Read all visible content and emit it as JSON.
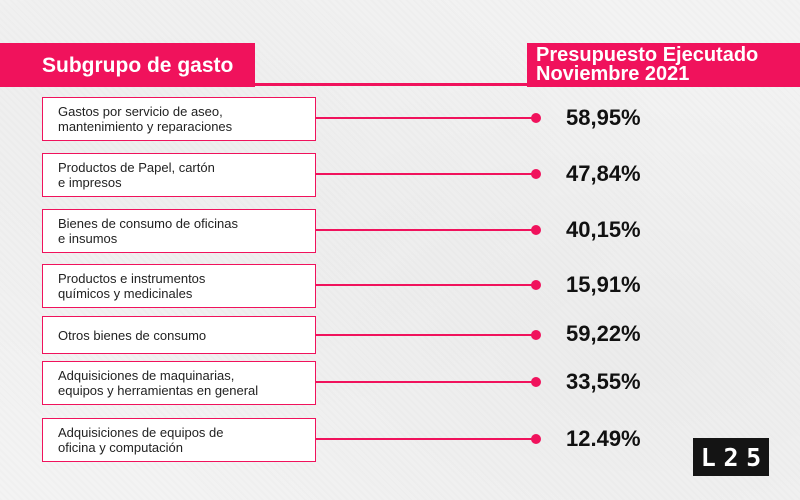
{
  "header": {
    "left_title": "Subgrupo de gasto",
    "right_title_line1": "Presupuesto Ejecutado",
    "right_title_line2": "Noviembre 2021"
  },
  "rows": [
    {
      "label_line1": "Gastos por servicio de aseo,",
      "label_line2": "mantenimiento y reparaciones",
      "value": "58,95%"
    },
    {
      "label_line1": "Productos de Papel, cartón",
      "label_line2": "e impresos",
      "value": "47,84%"
    },
    {
      "label_line1": "Bienes de consumo de oficinas",
      "label_line2": "e insumos",
      "value": "40,15%"
    },
    {
      "label_line1": "Productos e instrumentos",
      "label_line2": "químicos y medicinales",
      "value": "15,91%"
    },
    {
      "label_line1": "Otros bienes de consumo",
      "label_line2": "",
      "value": "59,22%"
    },
    {
      "label_line1": "Adquisiciones de maquinarias,",
      "label_line2": "equipos y herramientas en general",
      "value": "33,55%"
    },
    {
      "label_line1": "Adquisiciones de equipos de",
      "label_line2": "oficina y computación",
      "value": "12.49%"
    }
  ],
  "logo": {
    "c1": "L",
    "c2": "2",
    "c3": "5"
  },
  "colors": {
    "accent": "#f0125c",
    "background": "#f3f3f3",
    "logo_bg": "#141414"
  }
}
